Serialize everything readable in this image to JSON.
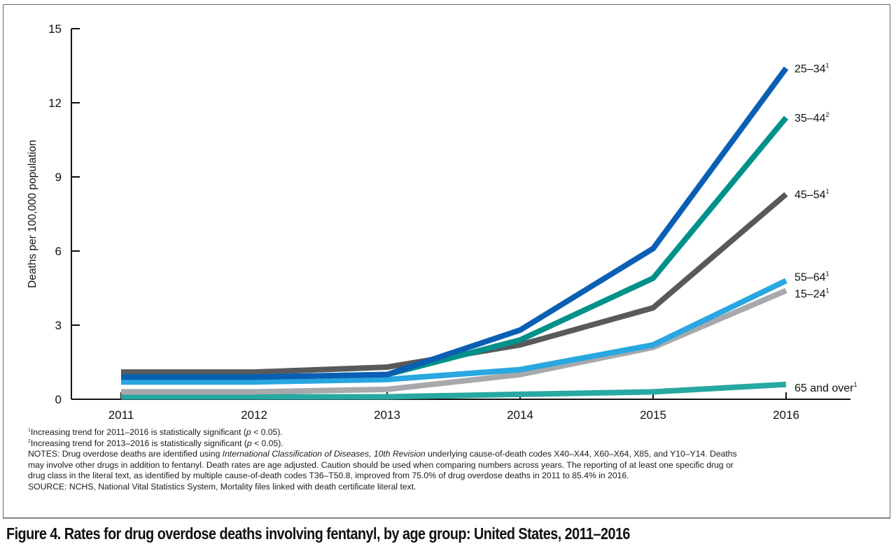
{
  "caption": "Figure 4. Rates for drug overdose deaths involving fentanyl, by age group: United States, 2011–2016",
  "notes": {
    "footnote1": {
      "marker": "1",
      "text": "Increasing trend for 2011–2016 is statistically significant (",
      "p": "p",
      "tail": " < 0.05)."
    },
    "footnote2": {
      "marker": "2",
      "text": "Increasing trend for 2013–2016 is statistically significant (",
      "p": "p",
      "tail": " < 0.05)."
    },
    "notes_line1_a": "NOTES: Drug overdose deaths are identified using ",
    "notes_line1_italic": "International Classification of Diseases, 10th Revision",
    "notes_line1_b": " underlying cause-of-death codes X40–X44, X60–X64, X85, and Y10–Y14. Deaths",
    "notes_line2": "may involve other drugs in addition to fentanyl. Death rates are age adjusted. Caution should be used when comparing numbers across years. The reporting of at least one specific drug or",
    "notes_line3": "drug class in the literal text, as identified by multiple cause-of-death codes T36–T50.8, improved from 75.0% of drug overdose deaths in 2011 to 85.4% in 2016.",
    "source": "SOURCE: NCHS, National Vital Statistics System, Mortality files linked with death certificate literal text."
  },
  "chart_data": {
    "type": "line",
    "title": "Rates for drug overdose deaths involving fentanyl, by age group: United States, 2011–2016",
    "xlabel": "",
    "ylabel": "Deaths per 100,000 population",
    "x": [
      "2011",
      "2012",
      "2013",
      "2014",
      "2015",
      "2016"
    ],
    "yticks": [
      "0",
      "3",
      "6",
      "9",
      "12",
      "15"
    ],
    "ylim": [
      0,
      15
    ],
    "grid": false,
    "legend": "direct labels at right end of lines",
    "series": [
      {
        "name": "65 and over",
        "sup": "1",
        "color": "#27a8a3",
        "values": [
          0.1,
          0.1,
          0.1,
          0.2,
          0.3,
          0.6
        ]
      },
      {
        "name": "15–24",
        "sup": "1",
        "color": "#a7a9ac",
        "values": [
          0.3,
          0.3,
          0.4,
          1.0,
          2.1,
          4.4
        ]
      },
      {
        "name": "55–64",
        "sup": "1",
        "color": "#29a7e1",
        "values": [
          0.7,
          0.7,
          0.8,
          1.2,
          2.2,
          4.8
        ]
      },
      {
        "name": "45–54",
        "sup": "1",
        "color": "#58595b",
        "values": [
          1.1,
          1.1,
          1.3,
          2.2,
          3.7,
          8.3
        ]
      },
      {
        "name": "35–44",
        "sup": "2",
        "color": "#00918a",
        "values": [
          0.9,
          0.9,
          1.0,
          2.4,
          4.9,
          11.4
        ]
      },
      {
        "name": "25–34",
        "sup": "1",
        "color": "#0a5fb4",
        "values": [
          0.9,
          0.9,
          1.0,
          2.8,
          6.1,
          13.4
        ]
      }
    ]
  }
}
